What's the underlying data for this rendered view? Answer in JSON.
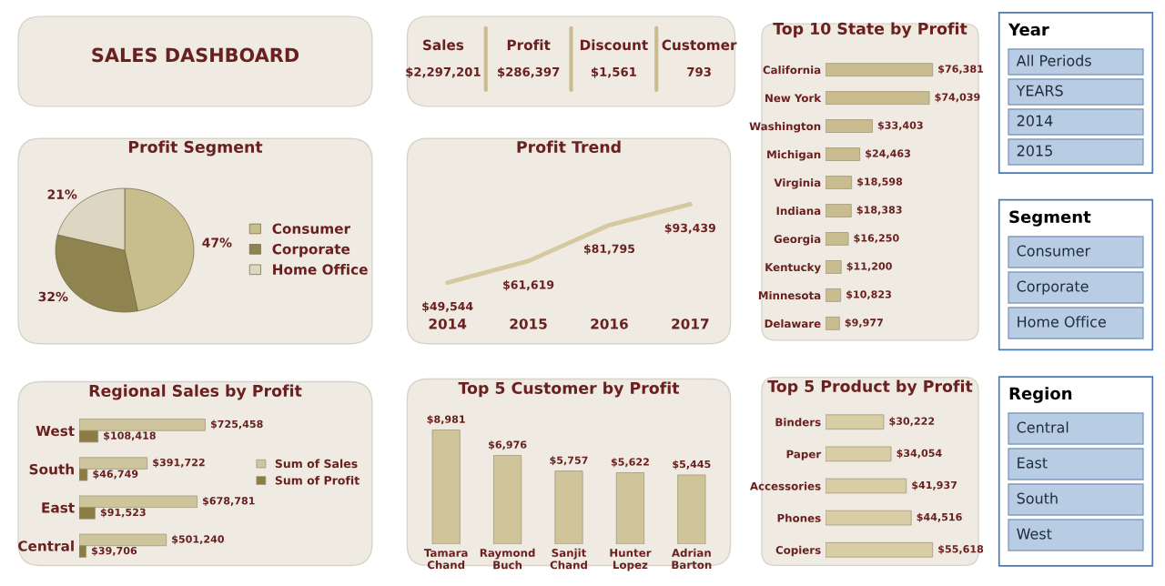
{
  "chart_data": [
    {
      "type": "other",
      "title": "SALES DASHBOARD"
    },
    {
      "type": "other",
      "categories": [
        "Sales",
        "Profit",
        "Discount",
        "Customer"
      ],
      "values": [
        2297201,
        286397,
        1561,
        793
      ],
      "value_labels": [
        "$2,297,201",
        "$286,397",
        "$1,561",
        "793"
      ]
    },
    {
      "type": "bar",
      "title": "Top 10 State by Profit",
      "orientation": "horizontal",
      "categories": [
        "California",
        "New York",
        "Washington",
        "Michigan",
        "Virginia",
        "Indiana",
        "Georgia",
        "Kentucky",
        "Minnesota",
        "Delaware"
      ],
      "values": [
        76381,
        74039,
        33403,
        24463,
        18598,
        18383,
        16250,
        11200,
        10823,
        9977
      ],
      "value_labels": [
        "$76,381",
        "$74,039",
        "$33,403",
        "$24,463",
        "$18,598",
        "$18,383",
        "$16,250",
        "$11,200",
        "$10,823",
        "$9,977"
      ],
      "color": "#c9bd8f"
    },
    {
      "type": "other",
      "title": "Year",
      "annotations": [
        "All Periods",
        "YEARS",
        "2014",
        "2015"
      ]
    },
    {
      "type": "pie",
      "title": "Profit Segment",
      "categories": [
        "Consumer",
        "Corporate",
        "Home Office"
      ],
      "values": [
        47,
        32,
        21
      ],
      "value_labels": [
        "47%",
        "32%",
        "21%"
      ],
      "colors": [
        "#c8bd8d",
        "#8f8450",
        "#ddd6c3"
      ],
      "legend": "right"
    },
    {
      "type": "line",
      "title": "Profit Trend",
      "categories": [
        "2014",
        "2015",
        "2016",
        "2017"
      ],
      "values": [
        49544,
        61619,
        81795,
        93439
      ],
      "value_labels": [
        "$49,544",
        "$61,619",
        "$81,795",
        "$93,439"
      ],
      "color": "#d6c9a0"
    },
    {
      "type": "other",
      "title": "Segment",
      "annotations": [
        "Consumer",
        "Corporate",
        "Home Office"
      ]
    },
    {
      "type": "bar",
      "title": "Regional Sales by Profit",
      "orientation": "horizontal",
      "categories": [
        "West",
        "South",
        "East",
        "Central"
      ],
      "legend": "right",
      "series": [
        {
          "name": "Sum of Sales",
          "color": "#cfc59c",
          "values": [
            725458,
            391722,
            678781,
            501240
          ],
          "value_labels": [
            "$725,458",
            "$391,722",
            "$678,781",
            "$501,240"
          ]
        },
        {
          "name": "Sum of Profit",
          "color": "#8b7d45",
          "values": [
            108418,
            46749,
            91523,
            39706
          ],
          "value_labels": [
            "$108,418",
            "$46,749",
            "$91,523",
            "$39,706"
          ]
        }
      ]
    },
    {
      "type": "bar",
      "title": "Top 5 Customer by Profit",
      "categories": [
        "Tamara Chand",
        "Raymond Buch",
        "Sanjit Chand",
        "Hunter Lopez",
        "Adrian Barton"
      ],
      "values": [
        8981,
        6976,
        5757,
        5622,
        5445
      ],
      "value_labels": [
        "$8,981",
        "$6,976",
        "$5,757",
        "$5,622",
        "$5,445"
      ],
      "color": "#cfc49a"
    },
    {
      "type": "bar",
      "title": "Top 5 Product by Profit",
      "orientation": "horizontal",
      "categories": [
        "Binders",
        "Paper",
        "Accessories",
        "Phones",
        "Copiers"
      ],
      "values": [
        30222,
        34054,
        41937,
        44516,
        55618
      ],
      "value_labels": [
        "$30,222",
        "$34,054",
        "$41,937",
        "$44,516",
        "$55,618"
      ],
      "color": "#d8cda5"
    },
    {
      "type": "other",
      "title": "Region",
      "annotations": [
        "Central",
        "East",
        "South",
        "West"
      ]
    }
  ]
}
